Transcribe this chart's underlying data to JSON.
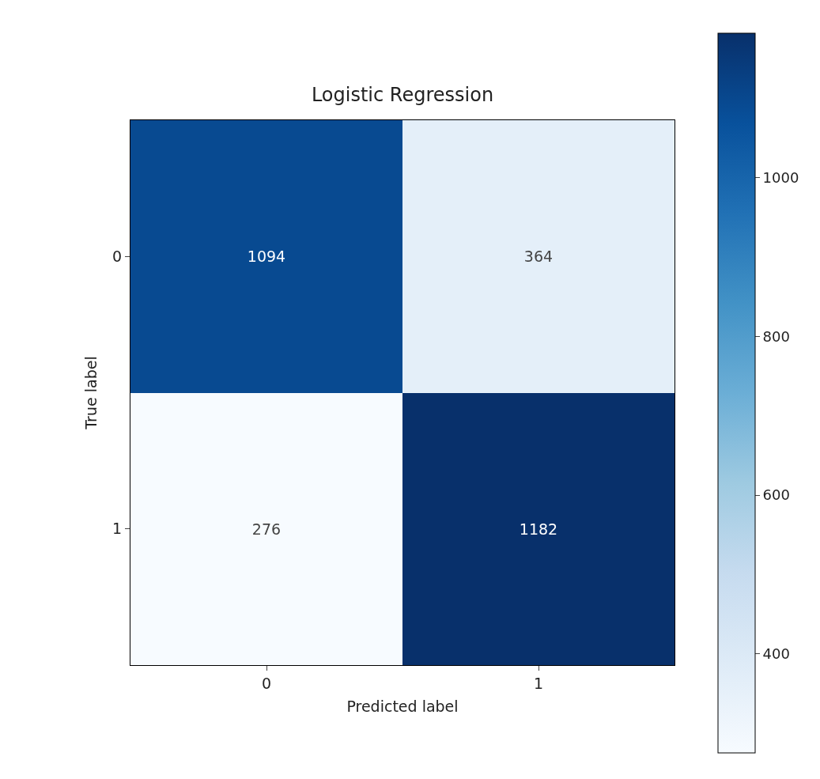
{
  "chart_data": {
    "type": "heatmap",
    "title": "Logistic Regression",
    "xlabel": "Predicted label",
    "ylabel": "True label",
    "categories": [
      "0",
      "1"
    ],
    "y_categories": [
      "0",
      "1"
    ],
    "cells": [
      [
        1094,
        364
      ],
      [
        276,
        1182
      ]
    ],
    "clim": [
      276,
      1182
    ],
    "cticks": [
      400,
      600,
      800,
      1000
    ],
    "data_labels": true
  }
}
